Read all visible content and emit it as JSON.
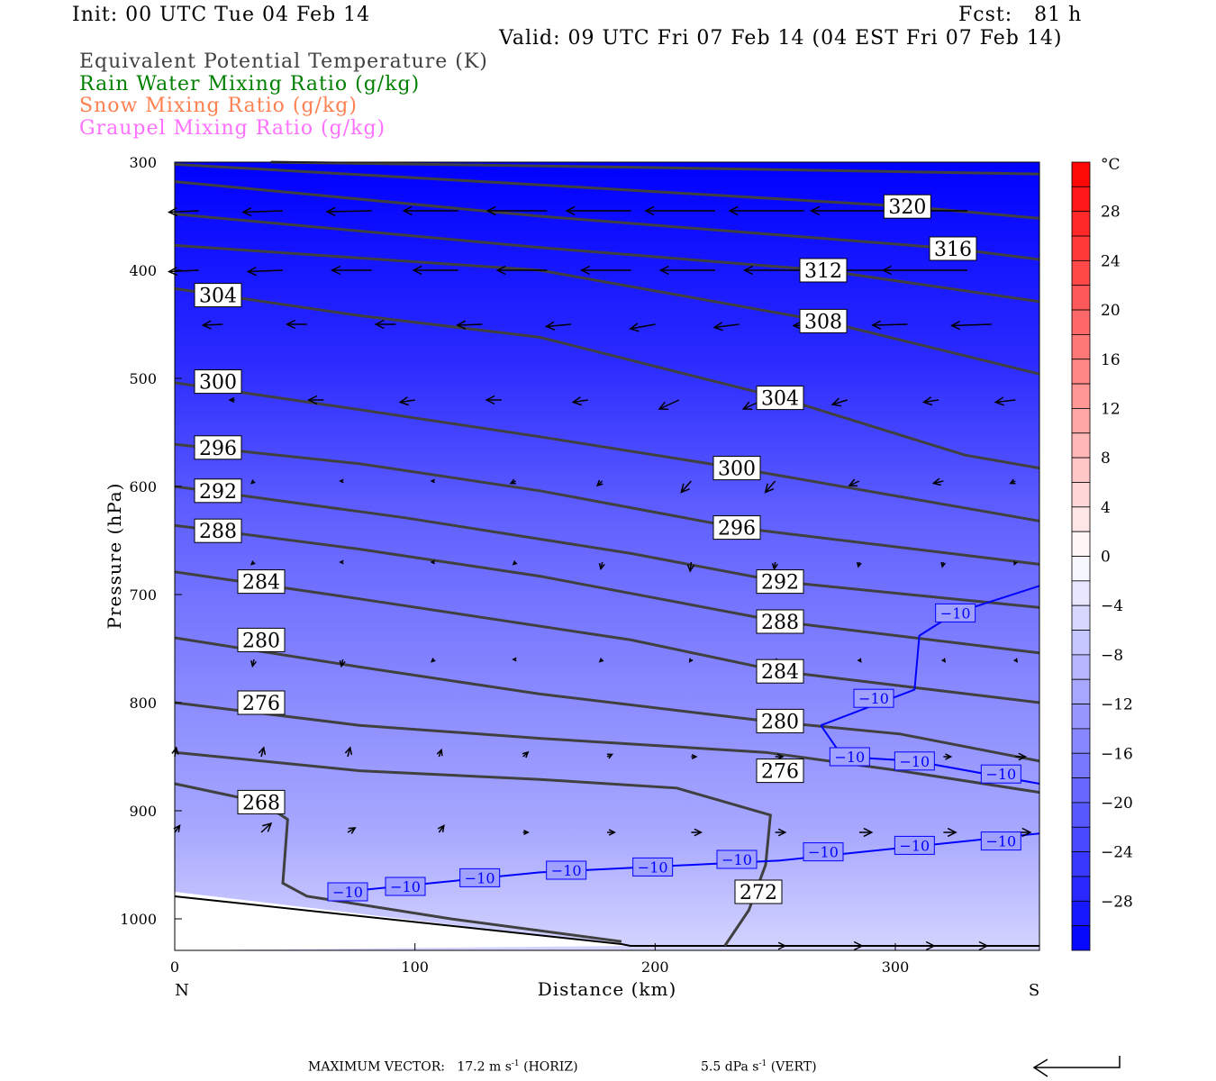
{
  "header": {
    "init": "Init: 00 UTC Tue 04 Feb 14",
    "fcst": "Fcst:   81 h",
    "valid": "Valid: 09 UTC Fri 07 Feb 14 (04 EST Fri 07 Feb 14)",
    "legend": [
      {
        "label": "Equivalent Potential Temperature (K)",
        "color": "#404040"
      },
      {
        "label": "Rain Water Mixing Ratio (g/kg)",
        "color": "#008000"
      },
      {
        "label": "Snow Mixing Ratio (g/kg)",
        "color": "#ff8050"
      },
      {
        "label": "Graupel Mixing Ratio (g/kg)",
        "color": "#ff70ff"
      }
    ]
  },
  "footer": {
    "max_vector_label": "MAXIMUM VECTOR:",
    "horiz": "17.2 m s",
    "horiz_unit": "(HORIZ)",
    "vert": "5.5 dPa s",
    "vert_unit": "(VERT)",
    "exp": "-1"
  },
  "chart_data": {
    "type": "cross-section",
    "xlabel": "Distance (km)",
    "ylabel": "Pressure (hPa)",
    "xlim": [
      0,
      360
    ],
    "ylim": [
      1030,
      300
    ],
    "xticks": [
      0,
      100,
      200,
      300
    ],
    "yticks": [
      300,
      400,
      500,
      600,
      700,
      800,
      900,
      1000
    ],
    "x_end_labels": {
      "left": "N",
      "right": "S"
    },
    "colorbar": {
      "unit": "°C",
      "range": [
        -32,
        32
      ],
      "step": 2,
      "tick_labels": [
        28,
        24,
        20,
        16,
        12,
        8,
        4,
        0,
        -4,
        -8,
        -12,
        -16,
        -20,
        -24,
        -28
      ],
      "low_color": "#0000ff",
      "mid_color": "#ffffff",
      "high_color": "#ff0000"
    },
    "theta_e_contours": [
      {
        "value": 268,
        "points": [
          [
            0,
            875
          ],
          [
            36,
            892
          ],
          [
            47,
            908
          ],
          [
            45,
            967
          ],
          [
            55,
            979
          ],
          [
            115,
            1000
          ],
          [
            186,
            1021
          ]
        ],
        "labels": [
          [
            36,
            892
          ]
        ]
      },
      {
        "value": 272,
        "points": [
          [
            0,
            846
          ],
          [
            77,
            863
          ],
          [
            152,
            871
          ],
          [
            209,
            879
          ],
          [
            248,
            904
          ],
          [
            246,
            950
          ],
          [
            239,
            992
          ],
          [
            229,
            1025
          ]
        ],
        "labels": [
          [
            243,
            975
          ]
        ]
      },
      {
        "value": 276,
        "points": [
          [
            0,
            800
          ],
          [
            77,
            821
          ],
          [
            152,
            833
          ],
          [
            246,
            846
          ],
          [
            302,
            863
          ],
          [
            360,
            883
          ]
        ],
        "labels": [
          [
            36,
            800
          ],
          [
            252,
            863
          ]
        ]
      },
      {
        "value": 280,
        "points": [
          [
            0,
            740
          ],
          [
            77,
            767
          ],
          [
            152,
            792
          ],
          [
            246,
            817
          ],
          [
            302,
            829
          ],
          [
            360,
            854
          ]
        ],
        "labels": [
          [
            36,
            742
          ],
          [
            252,
            817
          ]
        ]
      },
      {
        "value": 284,
        "points": [
          [
            0,
            679
          ],
          [
            77,
            704
          ],
          [
            190,
            742
          ],
          [
            252,
            771
          ],
          [
            360,
            800
          ]
        ],
        "labels": [
          [
            36,
            688
          ],
          [
            252,
            771
          ]
        ]
      },
      {
        "value": 288,
        "points": [
          [
            0,
            636
          ],
          [
            77,
            658
          ],
          [
            152,
            683
          ],
          [
            252,
            725
          ],
          [
            360,
            754
          ]
        ],
        "labels": [
          [
            18,
            641
          ],
          [
            252,
            725
          ]
        ]
      },
      {
        "value": 292,
        "points": [
          [
            0,
            600
          ],
          [
            96,
            629
          ],
          [
            190,
            662
          ],
          [
            252,
            688
          ],
          [
            360,
            712
          ]
        ],
        "labels": [
          [
            18,
            604
          ],
          [
            252,
            688
          ]
        ]
      },
      {
        "value": 296,
        "points": [
          [
            0,
            561
          ],
          [
            77,
            579
          ],
          [
            152,
            604
          ],
          [
            234,
            638
          ],
          [
            360,
            672
          ]
        ],
        "labels": [
          [
            18,
            564
          ],
          [
            234,
            638
          ]
        ]
      },
      {
        "value": 300,
        "points": [
          [
            0,
            504
          ],
          [
            77,
            529
          ],
          [
            152,
            554
          ],
          [
            234,
            583
          ],
          [
            360,
            632
          ]
        ],
        "labels": [
          [
            18,
            503
          ],
          [
            234,
            583
          ]
        ]
      },
      {
        "value": 304,
        "points": [
          [
            0,
            417
          ],
          [
            77,
            442
          ],
          [
            152,
            462
          ],
          [
            252,
            518
          ],
          [
            329,
            571
          ],
          [
            360,
            583
          ]
        ],
        "labels": [
          [
            18,
            423
          ],
          [
            252,
            518
          ]
        ]
      },
      {
        "value": 308,
        "points": [
          [
            0,
            377
          ],
          [
            152,
            400
          ],
          [
            270,
            447
          ],
          [
            360,
            496
          ]
        ],
        "labels": [
          [
            270,
            447
          ]
        ]
      },
      {
        "value": 312,
        "points": [
          [
            0,
            348
          ],
          [
            152,
            379
          ],
          [
            270,
            400
          ],
          [
            360,
            429
          ]
        ],
        "labels": [
          [
            270,
            400
          ]
        ]
      },
      {
        "value": 316,
        "points": [
          [
            0,
            318
          ],
          [
            152,
            350
          ],
          [
            324,
            380
          ],
          [
            360,
            390
          ]
        ],
        "labels": [
          [
            324,
            380
          ]
        ]
      },
      {
        "value": 320,
        "points": [
          [
            0,
            302
          ],
          [
            152,
            321
          ],
          [
            305,
            341
          ],
          [
            360,
            352
          ]
        ],
        "labels": [
          [
            305,
            341
          ]
        ]
      },
      {
        "value": 324,
        "points": [
          [
            40,
            300
          ],
          [
            200,
            305
          ],
          [
            360,
            311
          ]
        ],
        "labels": []
      }
    ],
    "isotherm_contours": [
      {
        "value": -10,
        "display": "−10",
        "color": "#0000ff",
        "points": [
          [
            70,
            975
          ],
          [
            152,
            957
          ],
          [
            252,
            946
          ],
          [
            360,
            921
          ]
        ],
        "labels": [
          [
            72,
            975
          ],
          [
            96,
            970
          ],
          [
            127,
            962
          ],
          [
            163,
            955
          ],
          [
            199,
            952
          ],
          [
            234,
            945
          ],
          [
            270,
            938
          ],
          [
            308,
            932
          ],
          [
            344,
            928
          ]
        ]
      },
      {
        "value": -10,
        "display": "−10",
        "color": "#0000ff",
        "points": [
          [
            269,
            821
          ],
          [
            308,
            788
          ],
          [
            310,
            738
          ],
          [
            325,
            717
          ],
          [
            360,
            692
          ]
        ],
        "labels": [
          [
            291,
            796
          ],
          [
            325,
            717
          ]
        ]
      },
      {
        "value": -10,
        "display": "−10",
        "color": "#0000ff",
        "points": [
          [
            269,
            821
          ],
          [
            278,
            850
          ],
          [
            308,
            854
          ],
          [
            360,
            875
          ]
        ],
        "labels": [
          [
            281,
            850
          ],
          [
            308,
            854
          ],
          [
            344,
            866
          ]
        ]
      }
    ],
    "wind_vectors": [
      {
        "p": 345,
        "x": [
          10,
          45,
          82,
          118,
          155,
          190,
          225,
          262,
          298,
          330
        ],
        "u": [
          -6,
          -8,
          -9,
          -11,
          -12,
          -13,
          -14,
          -15,
          -16,
          -17
        ],
        "w": [
          0.3,
          0.3,
          0.2,
          0,
          0,
          0,
          0,
          0,
          0,
          0
        ]
      },
      {
        "p": 400,
        "x": [
          10,
          45,
          82,
          118,
          155,
          190,
          225,
          262,
          298,
          330
        ],
        "u": [
          -6,
          -7,
          -8,
          -9,
          -10,
          -10,
          -11,
          -12,
          -13,
          -17
        ],
        "w": [
          0.3,
          0.3,
          0,
          0,
          0,
          0,
          0,
          0,
          0,
          0
        ]
      },
      {
        "p": 450,
        "x": [
          20,
          55,
          92,
          128,
          165,
          200,
          235,
          270,
          305,
          340
        ],
        "u": [
          -4,
          -4,
          -4,
          -5,
          -5,
          -5,
          -5,
          -6,
          -7,
          -8
        ],
        "w": [
          0.2,
          0,
          0,
          0.2,
          0.5,
          1.0,
          0.7,
          0.3,
          0.2,
          0.3
        ]
      },
      {
        "p": 520,
        "x": [
          25,
          62,
          100,
          136,
          172,
          210,
          245,
          280,
          318,
          350
        ],
        "u": [
          -1,
          -3,
          -3,
          -3,
          -3,
          -4,
          -4,
          -3,
          -3,
          -4
        ],
        "w": [
          0,
          0,
          0.5,
          0,
          0.5,
          2.0,
          2.0,
          1.0,
          0.5,
          0.5
        ]
      },
      {
        "p": 595,
        "x": [
          33,
          70,
          108,
          142,
          178,
          215,
          250,
          285,
          320,
          350
        ],
        "u": [
          -0.5,
          -0.5,
          -0.5,
          -1,
          -1,
          -2,
          -2,
          -2,
          -2,
          -1
        ],
        "w": [
          0.5,
          0,
          0,
          0.5,
          1.0,
          2.5,
          2.5,
          1.0,
          0.5,
          0.5
        ]
      },
      {
        "p": 670,
        "x": [
          33,
          70,
          108,
          142,
          178,
          215,
          250,
          285,
          320,
          350
        ],
        "u": [
          -0.5,
          -0.5,
          -0.5,
          -0.5,
          -0.3,
          -0.2,
          -0.2,
          -0.2,
          -0.2,
          -0.2
        ],
        "w": [
          0.5,
          0,
          0,
          0.5,
          1.5,
          2.0,
          1.5,
          1.0,
          1.0,
          0.5
        ]
      },
      {
        "p": 760,
        "x": [
          33,
          70,
          108,
          142,
          178,
          215,
          250,
          285,
          320,
          350
        ],
        "u": [
          -0.3,
          -0.3,
          -0.5,
          -0.5,
          -0.5,
          -0.3,
          0.2,
          0.3,
          0.3,
          0.3
        ],
        "w": [
          1.5,
          1.5,
          0.5,
          0,
          0.5,
          0.5,
          0.5,
          0.5,
          0.5,
          0.5
        ]
      },
      {
        "p": 850,
        "x": [
          0,
          36,
          72,
          110,
          145,
          180,
          215,
          250,
          285,
          320,
          350
        ],
        "u": [
          0.3,
          0.5,
          0.5,
          0.5,
          1,
          1,
          1,
          1.5,
          1.5,
          1.5,
          2
        ],
        "w": [
          -2,
          -2,
          -2,
          -1.5,
          -1,
          -0.5,
          0,
          0,
          0,
          0,
          0
        ]
      },
      {
        "p": 920,
        "x": [
          0,
          36,
          72,
          110,
          145,
          180,
          215,
          250,
          285,
          320,
          350
        ],
        "u": [
          1,
          2,
          1.5,
          1,
          1,
          1.5,
          2,
          2,
          2.5,
          2.5,
          3
        ],
        "w": [
          -1.5,
          -2,
          -1,
          -1.5,
          0,
          0,
          0,
          0,
          0,
          0,
          0
        ]
      },
      {
        "p": 1025,
        "x": [
          250,
          280,
          310,
          330
        ],
        "u": [
          2,
          3,
          3,
          4
        ],
        "w": [
          0,
          0,
          0,
          0
        ]
      }
    ]
  }
}
